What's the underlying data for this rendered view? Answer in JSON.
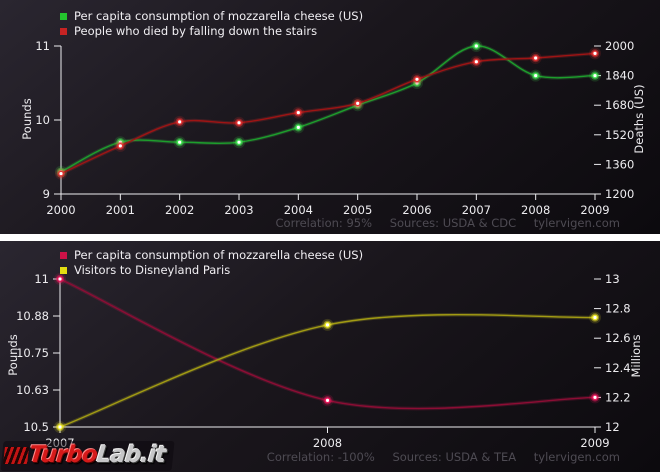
{
  "watermark": {
    "text": "TurboLab.it",
    "turbo": "Turbo",
    "lab": "Lab.it"
  },
  "chart_data": [
    {
      "type": "line",
      "title": "",
      "x_labels": [
        "2000",
        "2001",
        "2002",
        "2003",
        "2004",
        "2005",
        "2006",
        "2007",
        "2008",
        "2009"
      ],
      "legend_position": "top-left",
      "grid": false,
      "series": [
        {
          "name": "Per capita consumption of mozzarella cheese (US)",
          "axis": "left",
          "values": [
            9.3,
            9.7,
            9.7,
            9.7,
            9.9,
            10.2,
            10.5,
            11.0,
            10.6,
            10.6
          ],
          "colors": {
            "legend": "#24c32e",
            "line": "#1d9e2c",
            "bright": "#43e353"
          }
        },
        {
          "name": "People who died by falling down the stairs",
          "axis": "right",
          "values": [
            1310,
            1460,
            1590,
            1585,
            1640,
            1690,
            1820,
            1915,
            1935,
            1960
          ],
          "colors": {
            "legend": "#c62323",
            "line": "#9e1414",
            "bright": "#e73232"
          }
        }
      ],
      "axes": {
        "left": {
          "label": "Pounds",
          "min": 9,
          "max": 11,
          "ticks": [
            {
              "v": 9,
              "label": "9"
            },
            {
              "v": 10,
              "label": "10"
            },
            {
              "v": 11,
              "label": "11"
            }
          ]
        },
        "right": {
          "label": "Deaths (US)",
          "min": 1200,
          "max": 2000,
          "ticks": [
            {
              "v": 1200,
              "label": "1200"
            },
            {
              "v": 1360,
              "label": "1360"
            },
            {
              "v": 1520,
              "label": "1520"
            },
            {
              "v": 1680,
              "label": "1680"
            },
            {
              "v": 1840,
              "label": "1840"
            },
            {
              "v": 2000,
              "label": "2000"
            }
          ]
        }
      },
      "footer": {
        "correlation": "Correlation: 95%",
        "sources": "Sources: USDA & CDC",
        "site": "tylervigen.com"
      }
    },
    {
      "type": "line",
      "title": "",
      "x_labels": [
        "2007",
        "2008",
        "2009"
      ],
      "legend_position": "top-left",
      "grid": false,
      "series": [
        {
          "name": "Per capita consumption of mozzarella cheese (US)",
          "axis": "left",
          "values": [
            11.0,
            10.59,
            10.6
          ],
          "colors": {
            "legend": "#cc1247",
            "line": "#8c0d34",
            "bright": "#ee1a5e"
          }
        },
        {
          "name": "Visitors to Disneyland Paris",
          "axis": "right",
          "values": [
            12.0,
            12.69,
            12.74
          ],
          "colors": {
            "legend": "#e3de12",
            "line": "#a29b13",
            "bright": "#efe92a"
          }
        }
      ],
      "axes": {
        "left": {
          "label": "Pounds",
          "min": 10.5,
          "max": 11,
          "ticks": [
            {
              "v": 10.5,
              "label": "10.5"
            },
            {
              "v": 10.625,
              "label": "10.63"
            },
            {
              "v": 10.75,
              "label": "10.75"
            },
            {
              "v": 10.875,
              "label": "10.88"
            },
            {
              "v": 11,
              "label": "11"
            }
          ]
        },
        "right": {
          "label": "Millions",
          "min": 12,
          "max": 13,
          "ticks": [
            {
              "v": 12,
              "label": "12"
            },
            {
              "v": 12.2,
              "label": "12.2"
            },
            {
              "v": 12.4,
              "label": "12.4"
            },
            {
              "v": 12.6,
              "label": "12.6"
            },
            {
              "v": 12.8,
              "label": "12.8"
            },
            {
              "v": 13,
              "label": "13"
            }
          ]
        }
      },
      "footer": {
        "correlation": "Correlation: -100%",
        "sources": "Sources: USDA & TEA",
        "site": "tylervigen.com"
      }
    }
  ]
}
